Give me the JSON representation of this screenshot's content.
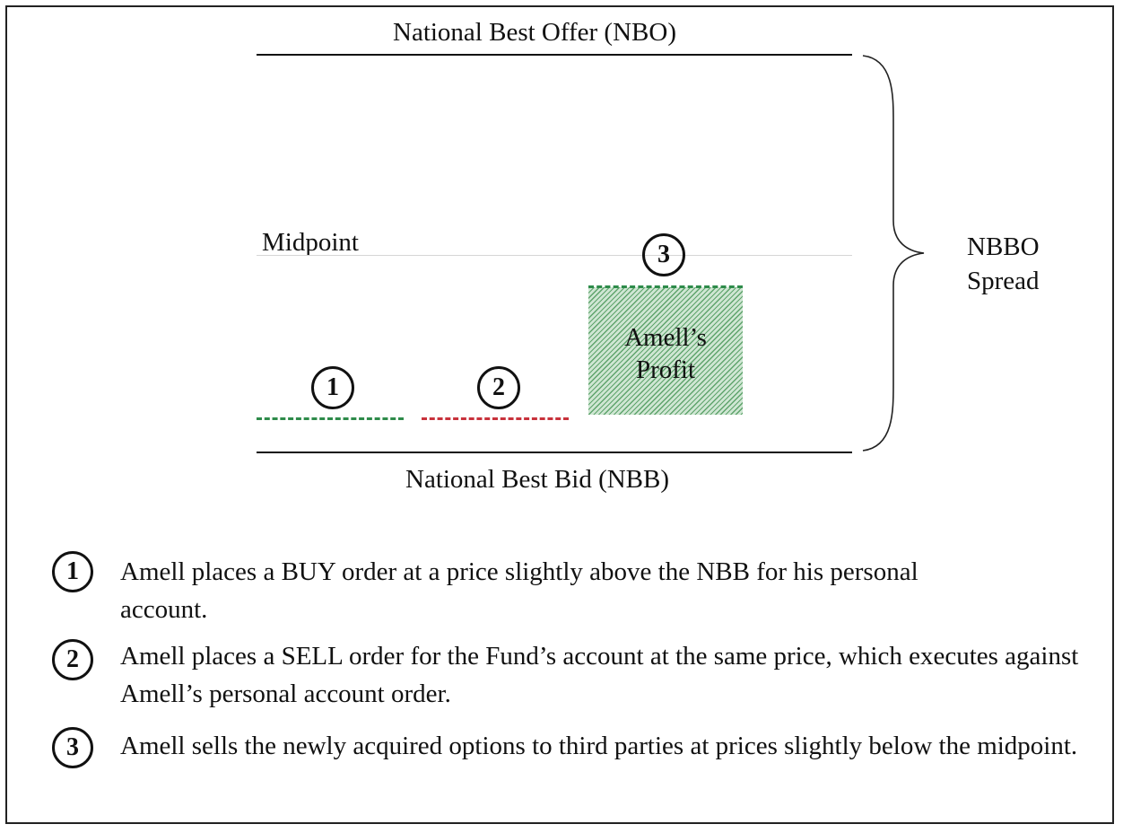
{
  "labels": {
    "nbo": "National Best Offer (NBO)",
    "nbb": "National Best Bid (NBB)",
    "midpoint": "Midpoint",
    "spread_line1": "NBBO",
    "spread_line2": "Spread",
    "profit_line1": "Amell’s",
    "profit_line2": "Profit"
  },
  "markers": [
    "1",
    "2",
    "3"
  ],
  "legend": [
    {
      "num": "1",
      "text": "Amell places a BUY order at a price slightly above the NBB for his personal account."
    },
    {
      "num": "2",
      "text": "Amell places a SELL order for the Fund’s account at the same price, which executes against Amell’s personal account order."
    },
    {
      "num": "3",
      "text": "Amell sells the newly acquired options to third parties at prices slightly below the midpoint."
    }
  ],
  "colors": {
    "buy_line": "#2e8b4a",
    "sell_line": "#c8323c",
    "profit_line": "#2e8b4a",
    "profit_fill": "#cfe6d3"
  }
}
